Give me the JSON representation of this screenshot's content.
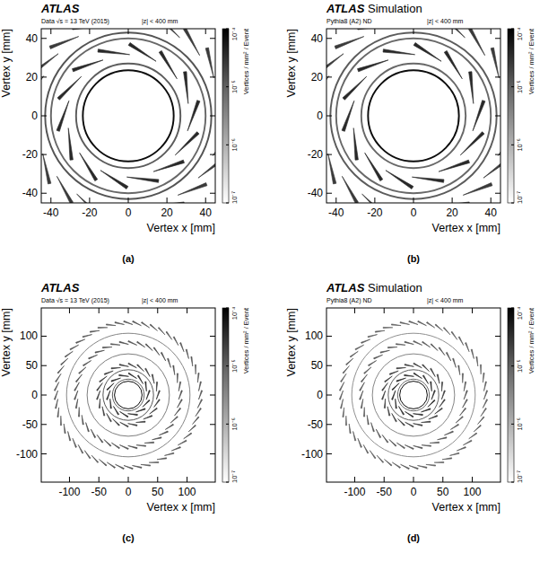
{
  "chart_data": [
    {
      "type": "density_map",
      "title": "ATLAS",
      "subtitle": "Data √s = 13 TeV (2015)",
      "annotations": [
        "|z| < 400 mm"
      ],
      "label": "(a)",
      "x_label": "Vertex x [mm]",
      "y_label": "Vertex y [mm]",
      "xlim": [
        -45,
        45
      ],
      "ylim": [
        -45,
        45
      ],
      "xticks": [
        -40,
        -20,
        0,
        20,
        40
      ],
      "yticks": [
        -40,
        -20,
        0,
        20,
        40
      ],
      "colorbar": {
        "label": "Vertices / mm² / Event",
        "range": [
          1e-07,
          0.0001
        ],
        "ticks": [
          {
            "value": 0.0001,
            "label": "10⁻⁴"
          },
          {
            "value": 1e-05,
            "label": "10⁻⁵"
          },
          {
            "value": 1e-06,
            "label": "10⁻⁶"
          },
          {
            "value": 1e-07,
            "label": "10⁻⁷"
          }
        ]
      },
      "rings": [
        {
          "r": 23.5,
          "density": 6e-05
        },
        {
          "r": 27,
          "density": 3e-06
        },
        {
          "r": 40,
          "density": 2e-06
        },
        {
          "r": 43,
          "density": 4e-06
        }
      ],
      "staves": [
        {
          "r": 33.5,
          "count": 14,
          "tilt": -20,
          "density": 2e-05
        },
        {
          "r": 50.5,
          "count": 22,
          "tilt": -20,
          "density": 1e-05
        }
      ]
    },
    {
      "type": "density_map",
      "title": "ATLAS Simulation",
      "subtitle": "Pythia8 (A2) ND",
      "annotations": [
        "|z| < 400 mm"
      ],
      "label": "(b)",
      "x_label": "Vertex x [mm]",
      "y_label": "Vertex y [mm]",
      "xlim": [
        -45,
        45
      ],
      "ylim": [
        -45,
        45
      ],
      "xticks": [
        -40,
        -20,
        0,
        20,
        40
      ],
      "yticks": [
        -40,
        -20,
        0,
        20,
        40
      ],
      "colorbar": {
        "label": "Vertices / mm² / Event",
        "range": [
          1e-07,
          0.0001
        ],
        "ticks": [
          {
            "value": 0.0001,
            "label": "10⁻⁴"
          },
          {
            "value": 1e-05,
            "label": "10⁻⁵"
          },
          {
            "value": 1e-06,
            "label": "10⁻⁶"
          },
          {
            "value": 1e-07,
            "label": "10⁻⁷"
          }
        ]
      },
      "rings": [
        {
          "r": 23.5,
          "density": 6e-05
        },
        {
          "r": 27,
          "density": 2e-06
        },
        {
          "r": 40,
          "density": 2e-06
        },
        {
          "r": 43,
          "density": 3e-06
        }
      ],
      "staves": [
        {
          "r": 33.5,
          "count": 14,
          "tilt": -20,
          "density": 2e-05
        },
        {
          "r": 50.5,
          "count": 22,
          "tilt": -20,
          "density": 1e-05
        }
      ]
    },
    {
      "type": "density_map",
      "title": "ATLAS",
      "subtitle": "Data √s = 13 TeV (2015)",
      "annotations": [
        "|z| < 400 mm"
      ],
      "label": "(c)",
      "x_label": "Vertex x [mm]",
      "y_label": "Vertex y [mm]",
      "xlim": [
        -148,
        148
      ],
      "ylim": [
        -148,
        148
      ],
      "xticks": [
        -100,
        -50,
        0,
        50,
        100
      ],
      "yticks": [
        -100,
        -50,
        0,
        50,
        100
      ],
      "colorbar": {
        "label": "Vertices / mm² / Event",
        "range": [
          1e-07,
          0.0001
        ],
        "ticks": [
          {
            "value": 0.0001,
            "label": "10⁻⁴"
          },
          {
            "value": 1e-05,
            "label": "10⁻⁵"
          },
          {
            "value": 1e-06,
            "label": "10⁻⁶"
          },
          {
            "value": 1e-07,
            "label": "10⁻⁷"
          }
        ]
      },
      "rings": [
        {
          "r": 23.5,
          "density": 6e-05
        },
        {
          "r": 27,
          "density": 3e-06
        },
        {
          "r": 43,
          "density": 4e-06
        },
        {
          "r": 70,
          "density": 1e-06
        },
        {
          "r": 105,
          "density": 8e-07
        }
      ],
      "staves": [
        {
          "r": 33.5,
          "count": 14,
          "tilt": -20,
          "density": 2e-05
        },
        {
          "r": 50.5,
          "count": 22,
          "tilt": -20,
          "density": 1e-05
        },
        {
          "r": 88.5,
          "count": 38,
          "tilt": -20,
          "density": 5e-06
        },
        {
          "r": 122.5,
          "count": 52,
          "tilt": -20,
          "density": 4e-06
        }
      ]
    },
    {
      "type": "density_map",
      "title": "ATLAS Simulation",
      "subtitle": "Pythia8 (A2) ND",
      "annotations": [
        "|z| < 400 mm"
      ],
      "label": "(d)",
      "x_label": "Vertex x [mm]",
      "y_label": "Vertex y [mm]",
      "xlim": [
        -148,
        148
      ],
      "ylim": [
        -148,
        148
      ],
      "xticks": [
        -100,
        -50,
        0,
        50,
        100
      ],
      "yticks": [
        -100,
        -50,
        0,
        50,
        100
      ],
      "colorbar": {
        "label": "Vertices / mm² / Event",
        "range": [
          1e-07,
          0.0001
        ],
        "ticks": [
          {
            "value": 0.0001,
            "label": "10⁻⁴"
          },
          {
            "value": 1e-05,
            "label": "10⁻⁵"
          },
          {
            "value": 1e-06,
            "label": "10⁻⁶"
          },
          {
            "value": 1e-07,
            "label": "10⁻⁷"
          }
        ]
      },
      "rings": [
        {
          "r": 23.5,
          "density": 6e-05
        },
        {
          "r": 27,
          "density": 2e-06
        },
        {
          "r": 43,
          "density": 3e-06
        },
        {
          "r": 70,
          "density": 8e-07
        },
        {
          "r": 105,
          "density": 6e-07
        }
      ],
      "staves": [
        {
          "r": 33.5,
          "count": 14,
          "tilt": -20,
          "density": 2e-05
        },
        {
          "r": 50.5,
          "count": 22,
          "tilt": -20,
          "density": 1e-05
        },
        {
          "r": 88.5,
          "count": 38,
          "tilt": -20,
          "density": 4e-06
        },
        {
          "r": 122.5,
          "count": 52,
          "tilt": -20,
          "density": 3e-06
        }
      ]
    }
  ]
}
